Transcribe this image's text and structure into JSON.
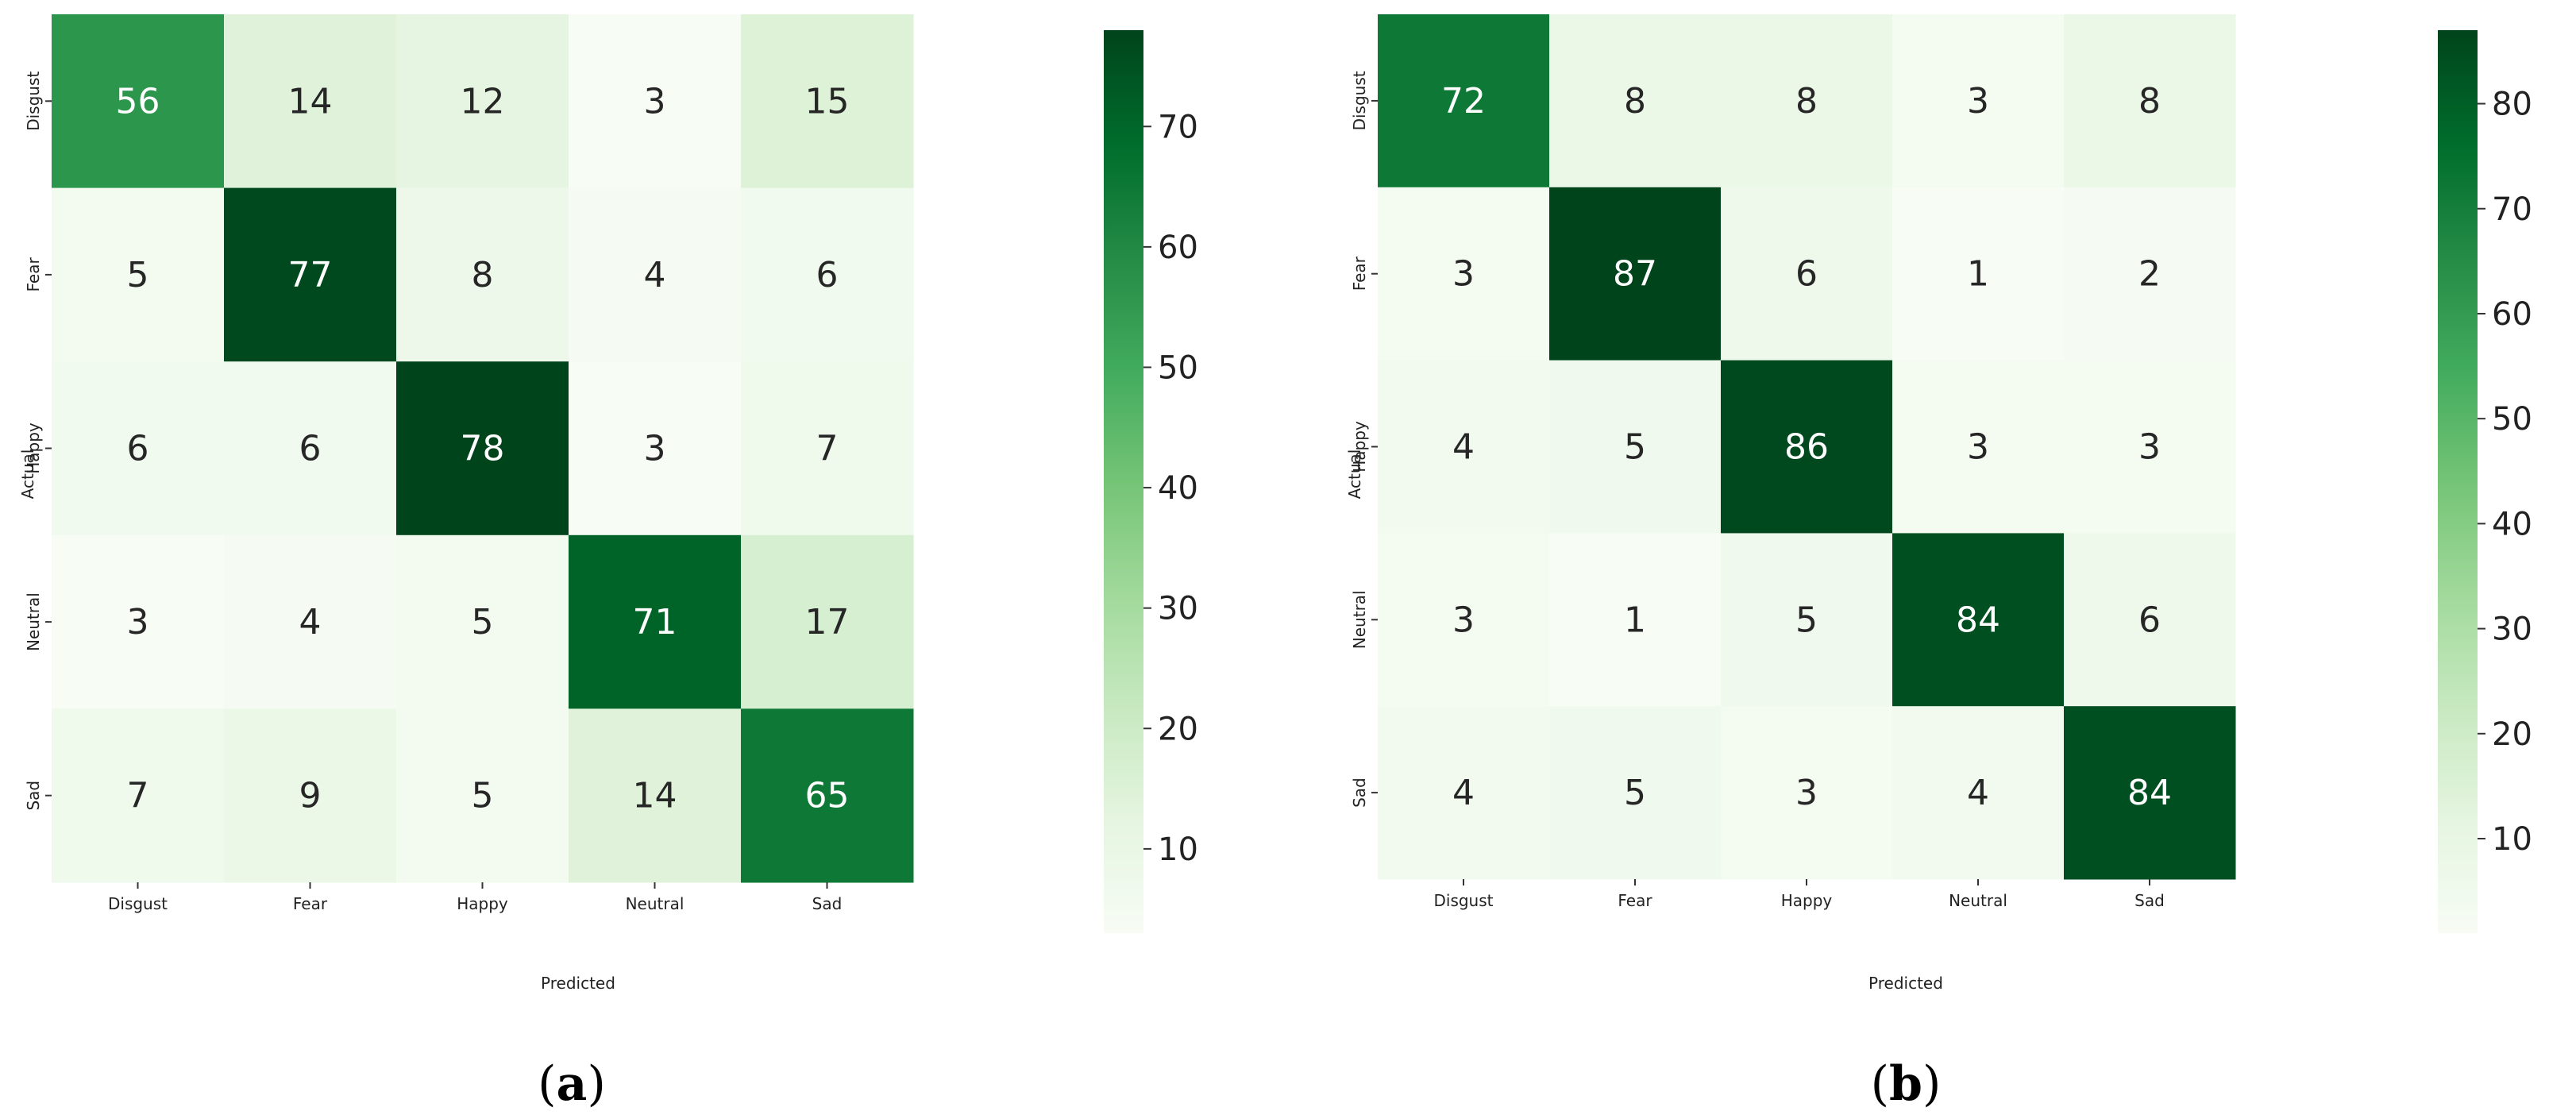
{
  "figure": {
    "panels": [
      {
        "letter": "a"
      },
      {
        "letter": "b"
      }
    ]
  },
  "chart_data": [
    {
      "type": "heatmap",
      "title": "",
      "xlabel": "Predicted",
      "ylabel": "Actual",
      "x_categories": [
        "Disgust",
        "Fear",
        "Happy",
        "Neutral",
        "Sad"
      ],
      "y_categories": [
        "Disgust",
        "Fear",
        "Happy",
        "Neutral",
        "Sad"
      ],
      "values": [
        [
          56,
          14,
          12,
          3,
          15
        ],
        [
          5,
          77,
          8,
          4,
          6
        ],
        [
          6,
          6,
          78,
          3,
          7
        ],
        [
          3,
          4,
          5,
          71,
          17
        ],
        [
          7,
          9,
          5,
          14,
          65
        ]
      ],
      "colormap": "Greens",
      "colorbar": {
        "min": 3,
        "max": 78,
        "ticks": [
          10,
          20,
          30,
          40,
          50,
          60,
          70
        ]
      },
      "panel_label": "(a)"
    },
    {
      "type": "heatmap",
      "title": "",
      "xlabel": "Predicted",
      "ylabel": "Actual",
      "x_categories": [
        "Disgust",
        "Fear",
        "Happy",
        "Neutral",
        "Sad"
      ],
      "y_categories": [
        "Disgust",
        "Fear",
        "Happy",
        "Neutral",
        "Sad"
      ],
      "values": [
        [
          72,
          8,
          8,
          3,
          8
        ],
        [
          3,
          87,
          6,
          1,
          2
        ],
        [
          4,
          5,
          86,
          3,
          3
        ],
        [
          3,
          1,
          5,
          84,
          6
        ],
        [
          4,
          5,
          3,
          4,
          84
        ]
      ],
      "colormap": "Greens",
      "colorbar": {
        "min": 1,
        "max": 87,
        "ticks": [
          10,
          20,
          30,
          40,
          50,
          60,
          70,
          80
        ]
      },
      "panel_label": "(b)"
    }
  ]
}
